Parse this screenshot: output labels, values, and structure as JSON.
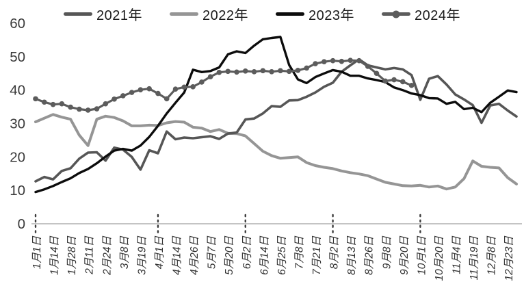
{
  "chart_data": {
    "type": "line",
    "title": "",
    "xlabel": "",
    "ylabel": "",
    "ylim": [
      0,
      60
    ],
    "yticks": [
      0,
      10,
      20,
      30,
      40,
      50,
      60
    ],
    "grid": false,
    "legend_position": "top",
    "background": "#ffffff",
    "axis_line_color": "#b0b0b0",
    "tick_dot_color": "#3c3c3c",
    "label_color": "#333333",
    "x_count": 56,
    "x_labels": [
      "1月1日",
      "1月14日",
      "1月28日",
      "2月11日",
      "2月24日",
      "3月8日",
      "3月19日",
      "4月1日",
      "4月14日",
      "4月26日",
      "5月7日",
      "5月20日",
      "6月2日",
      "6月14日",
      "6月25日",
      "7月8日",
      "7月21日",
      "8月2日",
      "8月13日",
      "8月26日",
      "9月8日",
      "9月20日",
      "10月1日",
      "10月20日",
      "11月4日",
      "11月19日",
      "12月8日",
      "12月23日"
    ],
    "x_labels_every_n_points": 2,
    "tick_mark_label_indices": [
      0,
      7,
      12,
      17,
      22
    ],
    "tick_mark_labels": [
      "1月1日",
      "4月1日",
      "6月2日",
      "8月2日",
      "10月1日"
    ],
    "series": [
      {
        "name": "2022年",
        "color": "#959595",
        "width": 4,
        "marker": false,
        "values": [
          30.5,
          31.6,
          32.7,
          31.9,
          31.3,
          26.5,
          23.4,
          31.3,
          32.2,
          31.8,
          30.8,
          29.3,
          29.3,
          29.5,
          29.4,
          30.2,
          30.6,
          30.4,
          28.9,
          28.6,
          27.6,
          28.2,
          27.1,
          27.0,
          26.3,
          24.0,
          21.7,
          20.4,
          19.6,
          19.8,
          20.0,
          18.3,
          17.4,
          16.9,
          16.5,
          15.8,
          15.3,
          14.9,
          14.4,
          13.4,
          12.4,
          11.9,
          11.4,
          11.3,
          11.5,
          11.0,
          11.3,
          10.4,
          11.0,
          13.5,
          18.8,
          17.2,
          16.9,
          16.7,
          13.8,
          11.9
        ]
      },
      {
        "name": "2021年",
        "color": "#565656",
        "width": 3.6,
        "marker": false,
        "values": [
          12.7,
          14.0,
          13.3,
          15.8,
          16.6,
          19.5,
          21.3,
          21.4,
          18.9,
          22.8,
          22.2,
          20.0,
          16.2,
          22.0,
          21.1,
          27.6,
          25.3,
          25.8,
          25.6,
          25.9,
          26.2,
          25.4,
          27.0,
          27.3,
          31.2,
          31.5,
          33.0,
          35.2,
          35.0,
          36.9,
          37.0,
          38.0,
          39.3,
          41.0,
          42.2,
          45.5,
          47.4,
          49.2,
          47.4,
          46.8,
          46.2,
          46.6,
          46.2,
          44.5,
          37.1,
          43.4,
          44.2,
          41.7,
          38.7,
          37.2,
          35.5,
          30.2,
          35.4,
          35.9,
          33.9,
          32.1
        ]
      },
      {
        "name": "2023年",
        "color": "#0c0c0c",
        "width": 3.4,
        "marker": false,
        "values": [
          9.5,
          10.3,
          11.3,
          12.5,
          13.6,
          15.2,
          16.4,
          18.1,
          20.1,
          21.9,
          22.4,
          21.9,
          23.4,
          26.0,
          29.3,
          33.0,
          36.2,
          39.3,
          46.1,
          45.4,
          45.7,
          46.8,
          50.7,
          51.6,
          51.1,
          53.3,
          55.2,
          55.6,
          55.9,
          47.5,
          43.2,
          42.1,
          43.9,
          45.0,
          46.0,
          45.5,
          44.3,
          44.3,
          43.5,
          43.0,
          42.4,
          40.8,
          40.0,
          39.0,
          38.5,
          37.6,
          37.5,
          35.9,
          36.5,
          34.3,
          34.7,
          33.4,
          36.2,
          38.0,
          39.9,
          39.4
        ]
      },
      {
        "name": "2024年",
        "color": "#5c5c5c",
        "width": 3.2,
        "marker": true,
        "marker_radius": 3.8,
        "values": [
          37.4,
          36.4,
          35.7,
          35.9,
          34.9,
          34.3,
          34.0,
          34.4,
          35.9,
          37.3,
          38.3,
          39.3,
          40.1,
          40.4,
          39.0,
          37.4,
          40.3,
          40.9,
          41.0,
          42.4,
          44.0,
          45.3,
          45.6,
          45.4,
          45.7,
          45.5,
          45.8,
          45.5,
          45.8,
          45.6,
          45.9,
          46.6,
          47.9,
          48.5,
          48.8,
          48.6,
          48.9,
          48.8,
          47.1,
          45.0,
          42.7,
          43.1,
          42.5,
          41.4
        ]
      }
    ],
    "legend_order": [
      "2021年",
      "2022年",
      "2023年",
      "2024年"
    ]
  }
}
